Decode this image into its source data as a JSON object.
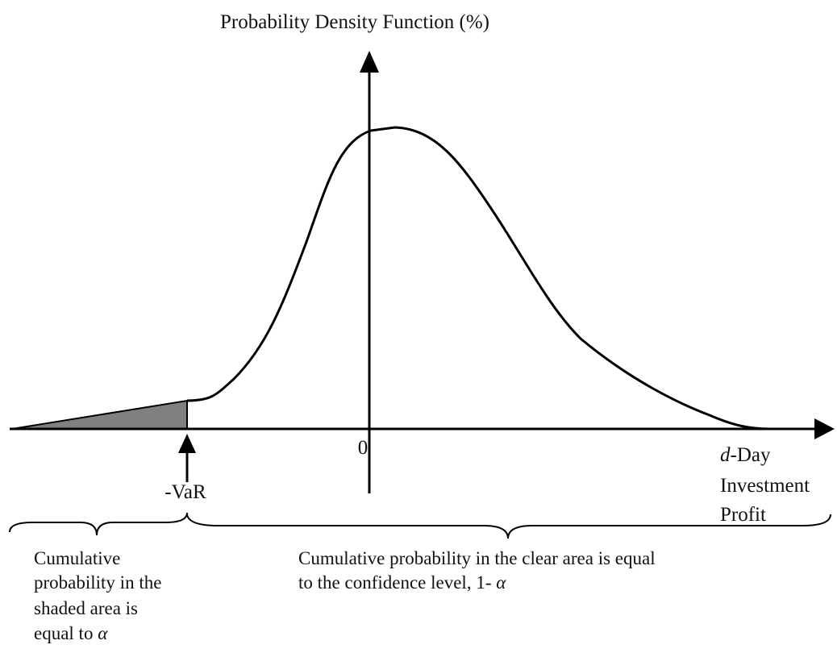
{
  "title": "Probability Density Function (%)",
  "origin_label": "0",
  "var_label": "-VaR",
  "x_axis_label": {
    "variable": "d",
    "lines": [
      "-Day",
      "Investment",
      "Profit"
    ]
  },
  "left_caption": {
    "lines": [
      "Cumulative",
      "probability in the",
      "shaded area is",
      "equal to "
    ],
    "symbol": "α"
  },
  "right_caption": {
    "lines": [
      "Cumulative  probability in the clear area is equal",
      "to the confidence level, 1- "
    ],
    "symbol": "α"
  }
}
